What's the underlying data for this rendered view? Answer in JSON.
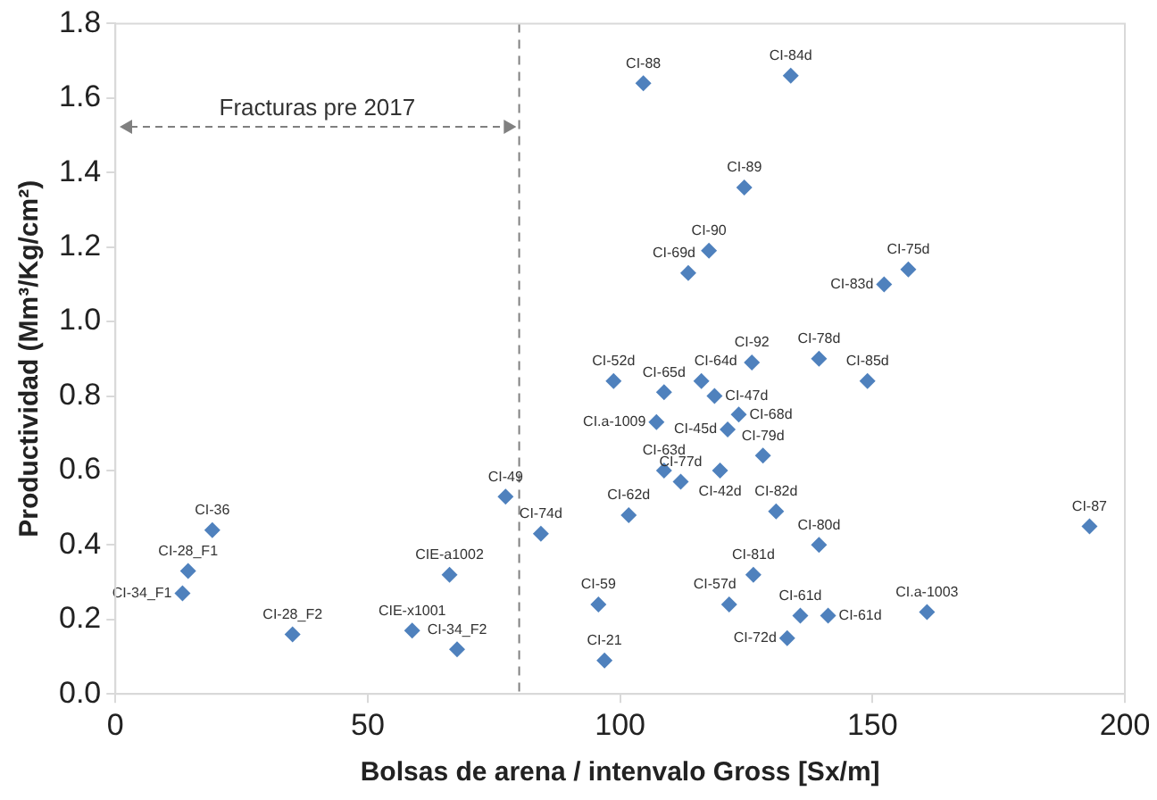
{
  "chart_data": {
    "type": "scatter",
    "xlabel": "Bolsas de arena / intenvalo Gross [Sx/m]",
    "ylabel": "Productividad (Mm³/Kg/cm²)",
    "marker": "diamond",
    "grid": false,
    "legend": false,
    "xlim": [
      0,
      200
    ],
    "xticks": [
      0,
      50,
      100,
      150,
      200
    ],
    "ylim": [
      0,
      1.8
    ],
    "yticks": [
      {
        "value": 0,
        "label": "0.0"
      },
      {
        "value": 0.2,
        "label": "0.2"
      },
      {
        "value": 0.4,
        "label": "0.4"
      },
      {
        "value": 0.6,
        "label": "0.6"
      },
      {
        "value": 0.8,
        "label": "0.8"
      },
      {
        "value": 1.0,
        "label": "1.0"
      },
      {
        "value": 1.2,
        "label": "1.2"
      },
      {
        "value": 1.4,
        "label": "1.4"
      },
      {
        "value": 1.6,
        "label": "1.6"
      },
      {
        "value": 1.8,
        "label": "1.8"
      }
    ],
    "ref_lines": [
      {
        "axis": "x",
        "value": 80,
        "line_style": "dashed",
        "color": "#808080"
      }
    ],
    "series": [
      {
        "color": "#4f81bd",
        "x": [
          19.2,
          14.4,
          13.3,
          35.1,
          66.2,
          58.8,
          67.7,
          77.3,
          84.3,
          104.6,
          133.8,
          124.6,
          117.6,
          113.5,
          157.1,
          152.3,
          98.7,
          108.7,
          116.1,
          118.7,
          126.1,
          139.4,
          149.0,
          123.5,
          107.2,
          121.3,
          128.3,
          108.7,
          119.8,
          112.0,
          101.7,
          130.9,
          139.4,
          126.4,
          95.7,
          121.6,
          135.7,
          141.2,
          133.1,
          96.9,
          160.8,
          193.0
        ],
        "values": [
          0.44,
          0.33,
          0.27,
          0.16,
          0.32,
          0.17,
          0.12,
          0.53,
          0.43,
          1.64,
          1.66,
          1.36,
          1.19,
          1.13,
          1.14,
          1.1,
          0.84,
          0.81,
          0.84,
          0.8,
          0.89,
          0.9,
          0.84,
          0.75,
          0.73,
          0.71,
          0.64,
          0.6,
          0.6,
          0.57,
          0.48,
          0.49,
          0.4,
          0.32,
          0.24,
          0.24,
          0.21,
          0.21,
          0.15,
          0.09,
          0.22,
          0.45
        ]
      }
    ],
    "annotations": [
      "Fracturas pre 2017",
      {
        "text": "CI-36",
        "x": 19.2,
        "y": 0.44
      },
      {
        "text": "CI-28_F1",
        "x": 14.4,
        "y": 0.33
      },
      {
        "text": "CI-34_F1",
        "x": 13.3,
        "y": 0.27
      },
      {
        "text": "CI-28_F2",
        "x": 35.1,
        "y": 0.16
      },
      {
        "text": "CIE-a1002",
        "x": 66.2,
        "y": 0.32
      },
      {
        "text": "CIE-x1001",
        "x": 58.8,
        "y": 0.17
      },
      {
        "text": "CI-34_F2",
        "x": 67.7,
        "y": 0.12
      },
      {
        "text": "CI-49",
        "x": 77.3,
        "y": 0.53
      },
      {
        "text": "CI-74d",
        "x": 84.3,
        "y": 0.43
      },
      {
        "text": "CI-88",
        "x": 104.6,
        "y": 1.64
      },
      {
        "text": "CI-84d",
        "x": 133.8,
        "y": 1.66
      },
      {
        "text": "CI-89",
        "x": 124.6,
        "y": 1.36
      },
      {
        "text": "CI-90",
        "x": 117.6,
        "y": 1.19
      },
      {
        "text": "CI-69d",
        "x": 113.5,
        "y": 1.13
      },
      {
        "text": "CI-75d",
        "x": 157.1,
        "y": 1.14
      },
      {
        "text": "CI-83d",
        "x": 152.3,
        "y": 1.1
      },
      {
        "text": "CI-52d",
        "x": 98.7,
        "y": 0.84
      },
      {
        "text": "CI-65d",
        "x": 108.7,
        "y": 0.81
      },
      {
        "text": "CI-64d",
        "x": 116.1,
        "y": 0.84
      },
      {
        "text": "CI-47d",
        "x": 118.7,
        "y": 0.8
      },
      {
        "text": "CI-92",
        "x": 126.1,
        "y": 0.89
      },
      {
        "text": "CI-78d",
        "x": 139.4,
        "y": 0.9
      },
      {
        "text": "CI-85d",
        "x": 149.0,
        "y": 0.84
      },
      {
        "text": "CI-68d",
        "x": 123.5,
        "y": 0.75
      },
      {
        "text": "CI.a-1009",
        "x": 107.2,
        "y": 0.73
      },
      {
        "text": "CI-45d",
        "x": 121.3,
        "y": 0.71
      },
      {
        "text": "CI-79d",
        "x": 128.3,
        "y": 0.64
      },
      {
        "text": "CI-63d",
        "x": 108.7,
        "y": 0.6
      },
      {
        "text": "CI-42d",
        "x": 119.8,
        "y": 0.6
      },
      {
        "text": "CI-77d",
        "x": 112.0,
        "y": 0.57
      },
      {
        "text": "CI-62d",
        "x": 101.7,
        "y": 0.48
      },
      {
        "text": "CI-82d",
        "x": 130.9,
        "y": 0.49
      },
      {
        "text": "CI-80d",
        "x": 139.4,
        "y": 0.4
      },
      {
        "text": "CI-81d",
        "x": 126.4,
        "y": 0.32
      },
      {
        "text": "CI-59",
        "x": 95.7,
        "y": 0.24
      },
      {
        "text": "CI-57d",
        "x": 121.6,
        "y": 0.24
      },
      {
        "text": "CI-61d",
        "x": 135.7,
        "y": 0.21
      },
      {
        "text": "CI-61d",
        "x": 141.2,
        "y": 0.21
      },
      {
        "text": "CI-72d",
        "x": 133.1,
        "y": 0.15
      },
      {
        "text": "CI-21",
        "x": 96.9,
        "y": 0.09
      },
      {
        "text": "CI.a-1003",
        "x": 160.8,
        "y": 0.22
      },
      {
        "text": "CI-87",
        "x": 193.0,
        "y": 0.45
      }
    ]
  }
}
